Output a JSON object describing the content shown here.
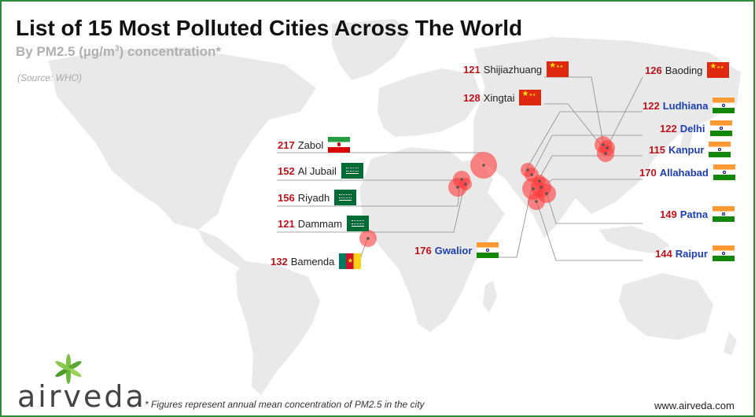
{
  "header": {
    "title": "List of 15 Most Polluted Cities Across The World",
    "subtitle_main": "By PM2.5 (µg/m",
    "subtitle_sup": "3",
    "subtitle_end": ") concentration*",
    "source": "(Source: WHO)"
  },
  "cities": [
    {
      "id": "shijiazhuang",
      "value": "121",
      "name": "Shijiazhuang",
      "flag": "CN",
      "highlight": false
    },
    {
      "id": "baoding",
      "value": "126",
      "name": "Baoding",
      "flag": "CN",
      "highlight": false
    },
    {
      "id": "xingtai",
      "value": "128",
      "name": "Xingtai",
      "flag": "CN",
      "highlight": false
    },
    {
      "id": "ludhiana",
      "value": "122",
      "name": "Ludhiana",
      "flag": "IN",
      "highlight": true
    },
    {
      "id": "delhi",
      "value": "122",
      "name": "Delhi",
      "flag": "IN",
      "highlight": true
    },
    {
      "id": "kanpur",
      "value": "115",
      "name": "Kanpur",
      "flag": "IN",
      "highlight": true
    },
    {
      "id": "allahabad",
      "value": "170",
      "name": "Allahabad",
      "flag": "IN",
      "highlight": true
    },
    {
      "id": "patna",
      "value": "149",
      "name": "Patna",
      "flag": "IN",
      "highlight": true
    },
    {
      "id": "raipur",
      "value": "144",
      "name": "Raipur",
      "flag": "IN",
      "highlight": true
    },
    {
      "id": "gwalior",
      "value": "176",
      "name": "Gwalior",
      "flag": "IN",
      "highlight": true
    },
    {
      "id": "zabol",
      "value": "217",
      "name": "Zabol",
      "flag": "IR",
      "highlight": false
    },
    {
      "id": "aljubail",
      "value": "152",
      "name": "Al Jubail",
      "flag": "SA",
      "highlight": false
    },
    {
      "id": "riyadh",
      "value": "156",
      "name": "Riyadh",
      "flag": "SA",
      "highlight": false
    },
    {
      "id": "dammam",
      "value": "121",
      "name": "Dammam",
      "flag": "SA",
      "highlight": false
    },
    {
      "id": "bamenda",
      "value": "132",
      "name": "Bamenda",
      "flag": "CM",
      "highlight": false
    }
  ],
  "colors": {
    "land": "#e9e9e9",
    "bubble": "#ff3b3b",
    "value_text": "#c0131b",
    "india_name": "#1d3fb5",
    "border": "#2e8b3a"
  },
  "footer": {
    "brand": "airveda",
    "footnote": "* Figures represent annual mean concentration of PM2.5 in the city",
    "website": "www.airveda.com"
  }
}
